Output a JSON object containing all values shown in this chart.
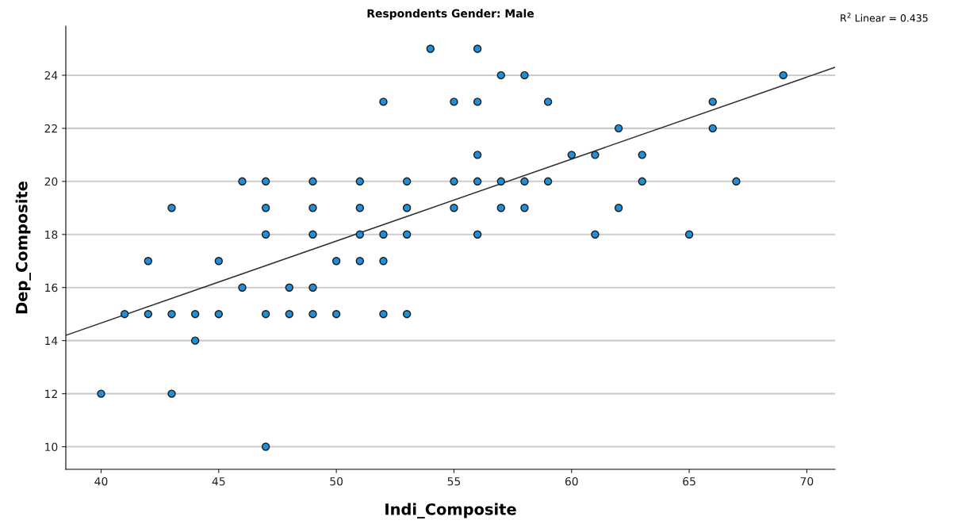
{
  "chart_data": {
    "type": "scatter",
    "title": "Respondents Gender: Male",
    "xlabel": "Indi_Composite",
    "ylabel": "Dep_Composite",
    "xlim": [
      38.5,
      71.2
    ],
    "ylim": [
      9.15,
      25.85
    ],
    "xticks": [
      40,
      45,
      50,
      55,
      60,
      65,
      70
    ],
    "yticks": [
      10,
      12,
      14,
      16,
      18,
      20,
      22,
      24
    ],
    "grid": "y",
    "marker": "circle",
    "series": [
      {
        "color": "#1f8fd8",
        "x": [
          54,
          56,
          57,
          58,
          69,
          52,
          55,
          56,
          59,
          66,
          62,
          66,
          56,
          60,
          61,
          63,
          46,
          47,
          49,
          51,
          53,
          55,
          56,
          57,
          58,
          59,
          63,
          67,
          43,
          47,
          49,
          51,
          53,
          55,
          57,
          58,
          62,
          47,
          49,
          51,
          52,
          53,
          56,
          61,
          65,
          42,
          45,
          50,
          51,
          52,
          46,
          48,
          49,
          41,
          42,
          43,
          44,
          45,
          47,
          48,
          49,
          50,
          52,
          53,
          44,
          40,
          43,
          47
        ],
        "values": [
          25,
          25,
          24,
          24,
          24,
          23,
          23,
          23,
          23,
          23,
          22,
          22,
          21,
          21,
          21,
          21,
          20,
          20,
          20,
          20,
          20,
          20,
          20,
          20,
          20,
          20,
          20,
          20,
          19,
          19,
          19,
          19,
          19,
          19,
          19,
          19,
          19,
          18,
          18,
          18,
          18,
          18,
          18,
          18,
          18,
          17,
          17,
          17,
          17,
          17,
          16,
          16,
          16,
          15,
          15,
          15,
          15,
          15,
          15,
          15,
          15,
          15,
          15,
          15,
          14,
          12,
          12,
          10
        ]
      },
      {
        "type": "line",
        "color": "#333333",
        "x": [
          38.5,
          71.2
        ],
        "values": [
          14.2,
          24.3
        ],
        "marker": "none",
        "line_style": "solid"
      }
    ],
    "annotations": [
      "R$^{2}$ Linear = 0.435"
    ]
  }
}
